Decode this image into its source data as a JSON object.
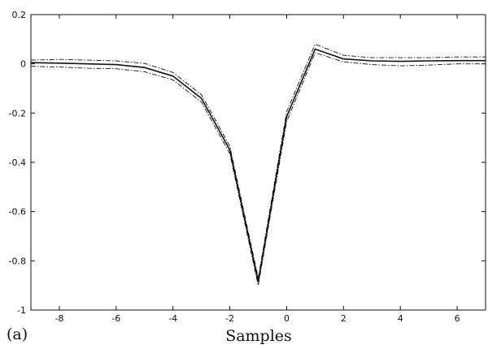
{
  "chart_data": {
    "type": "line",
    "panel_label": "(a)",
    "xlabel": "Samples",
    "ylabel": "",
    "xlim": [
      -9,
      7
    ],
    "ylim": [
      -1,
      0.2
    ],
    "grid": false,
    "x": [
      -9,
      -8,
      -7,
      -6,
      -5,
      -4,
      -3,
      -2,
      -1,
      0,
      1,
      2,
      3,
      4,
      5,
      6,
      7
    ],
    "x_ticks": [
      -8,
      -6,
      -4,
      -2,
      0,
      2,
      4,
      6
    ],
    "x_tick_labels": [
      "-8",
      "-6",
      "-4",
      "-2",
      "0",
      "2",
      "4",
      "6"
    ],
    "y_ticks": [
      0.2,
      0,
      -0.2,
      -0.4,
      -0.6,
      -0.8,
      -1
    ],
    "y_tick_labels": [
      "0.2",
      "0",
      "-0.2",
      "-0.4",
      "-0.6",
      "-0.8",
      "-1"
    ],
    "series": [
      {
        "style": "solid",
        "values": [
          0.005,
          0.003,
          0.0,
          -0.003,
          -0.015,
          -0.05,
          -0.14,
          -0.35,
          -0.885,
          -0.215,
          0.06,
          0.02,
          0.012,
          0.01,
          0.012,
          0.013,
          0.013
        ]
      },
      {
        "style": "dashdot",
        "values": [
          0.015,
          0.018,
          0.015,
          0.012,
          0.002,
          -0.035,
          -0.125,
          -0.335,
          -0.87,
          -0.195,
          0.08,
          0.035,
          0.025,
          0.025,
          0.025,
          0.028,
          0.028
        ]
      },
      {
        "style": "dashdot",
        "values": [
          -0.01,
          -0.013,
          -0.018,
          -0.02,
          -0.032,
          -0.065,
          -0.155,
          -0.365,
          -0.9,
          -0.235,
          0.045,
          0.008,
          -0.003,
          -0.008,
          -0.005,
          0.0,
          0.0
        ]
      }
    ]
  }
}
